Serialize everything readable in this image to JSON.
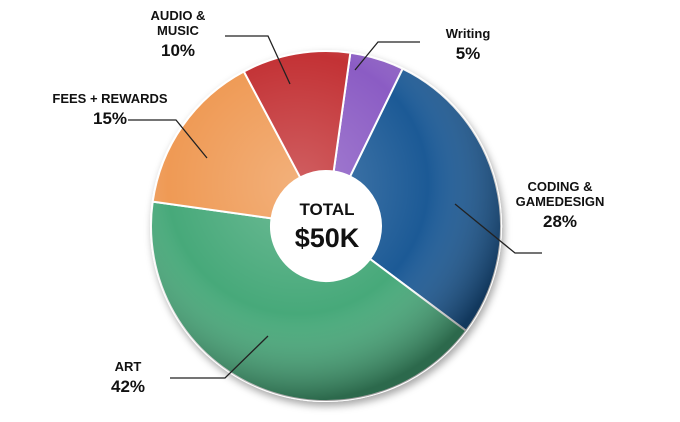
{
  "chart_data": {
    "type": "pie",
    "style": "donut",
    "center_label": {
      "title": "TOTAL",
      "value": "$50K"
    },
    "slices": [
      {
        "lines": [
          "Writing"
        ],
        "value": 5,
        "value_label": "5%",
        "color": "#8b5bc4"
      },
      {
        "lines": [
          "CODING &",
          "GAMEDESIGN"
        ],
        "value": 28,
        "value_label": "28%",
        "color": "#1a5a96"
      },
      {
        "lines": [
          "ART"
        ],
        "value": 42,
        "value_label": "42%",
        "color": "#46a97a"
      },
      {
        "lines": [
          "FEES + REWARDS"
        ],
        "value": 15,
        "value_label": "15%",
        "color": "#ef9a55"
      },
      {
        "lines": [
          "AUDIO &",
          "MUSIC"
        ],
        "value": 10,
        "value_label": "10%",
        "color": "#c33334"
      }
    ]
  }
}
